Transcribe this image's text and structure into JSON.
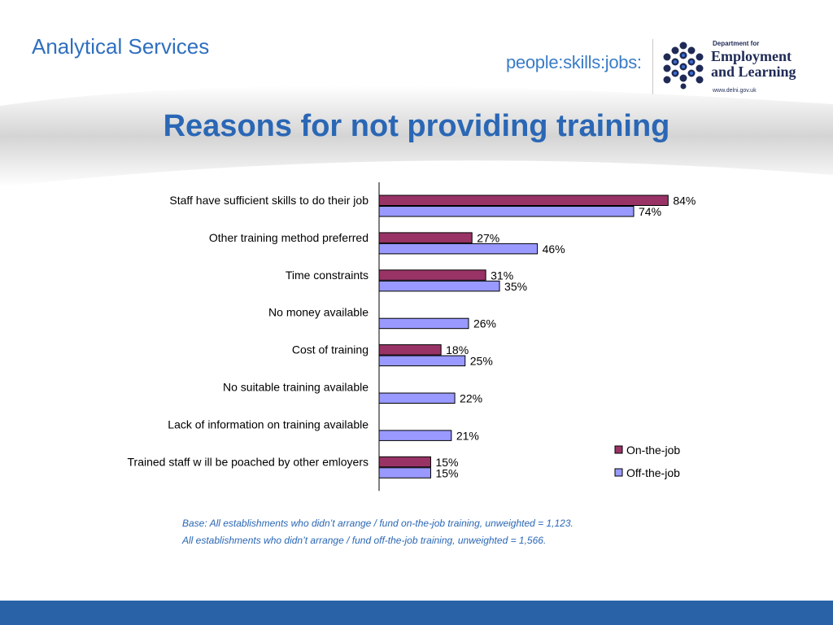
{
  "header": {
    "brand": "Analytical Services",
    "tagline": "people:skills:jobs:",
    "logo": {
      "department": "Department for",
      "name_line1": "Employment",
      "name_line2": "and Learning",
      "url": "www.delni.gov.uk"
    }
  },
  "title": "Reasons for not providing training",
  "chart_data": {
    "type": "bar",
    "orientation": "horizontal",
    "categories": [
      "Staff have sufficient skills to do their job",
      "Other training method preferred",
      "Time constraints",
      "No money available",
      "Cost of training",
      "No suitable training available",
      "Lack of information on training available",
      "Trained staff w ill be poached by other emloyers"
    ],
    "series": [
      {
        "name": "On-the-job",
        "color": "#993366",
        "values": [
          84,
          27,
          31,
          null,
          18,
          null,
          null,
          15
        ]
      },
      {
        "name": "Off-the-job",
        "color": "#9999ff",
        "values": [
          74,
          46,
          35,
          26,
          25,
          22,
          21,
          15
        ]
      }
    ],
    "value_suffix": "%",
    "xlim": [
      0,
      100
    ],
    "legend": "bottom-right",
    "grid": false
  },
  "notes": {
    "line1": "Base: All establishments who didn’t arrange / fund on-the-job training, unweighted = 1,123.",
    "line2": "All establishments who didn’t arrange / fund off-the-job training, unweighted = 1,566."
  }
}
